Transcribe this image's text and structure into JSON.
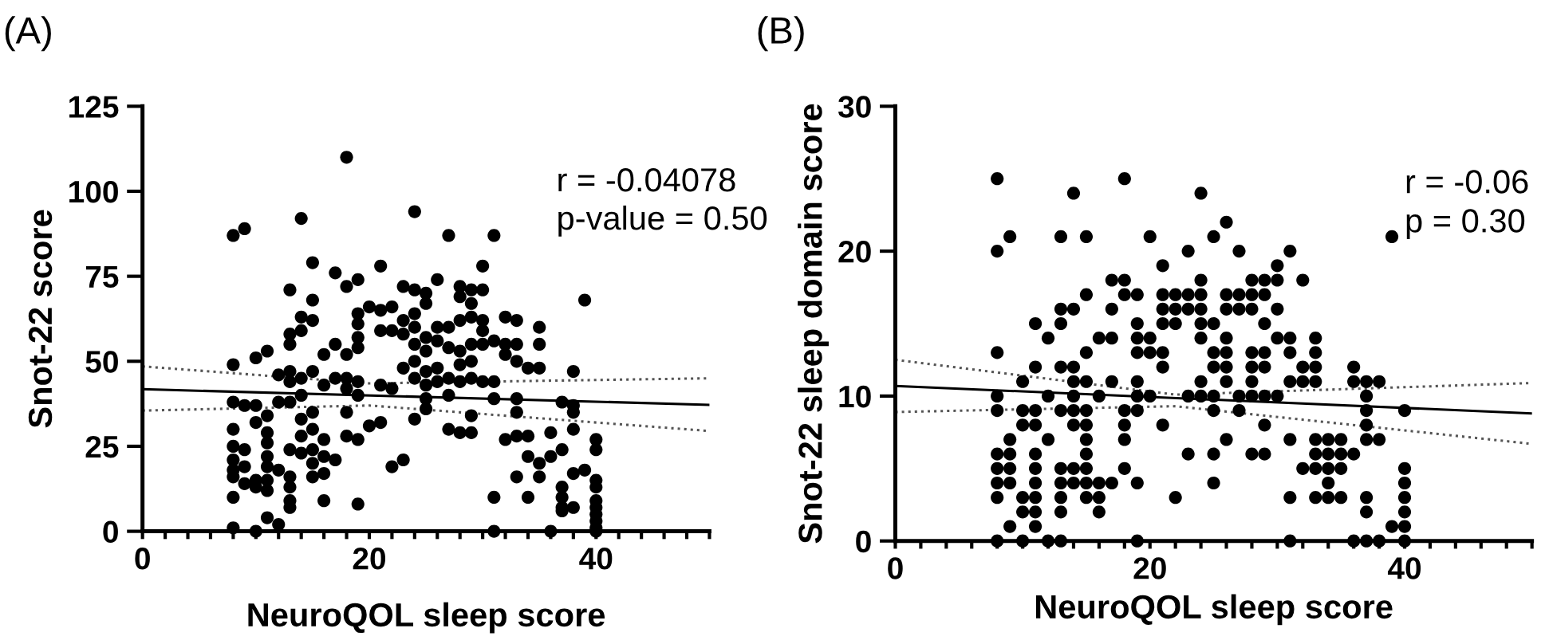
{
  "chart_data": [
    {
      "type": "scatter",
      "title": "(A)",
      "xlabel": "NeuroQOL sleep score",
      "ylabel": "Snot-22 score",
      "annotations": [
        "r = -0.04078",
        "p-value = 0.50"
      ],
      "xlim": [
        0,
        50
      ],
      "ylim": [
        0,
        125
      ],
      "xticks": [
        0,
        {
          "value": 2,
          "label": null
        },
        {
          "value": 4,
          "label": null
        },
        {
          "value": 6,
          "label": null
        },
        {
          "value": 8,
          "label": null
        },
        {
          "value": 10,
          "label": null
        },
        {
          "value": 12,
          "label": null
        },
        {
          "value": 14,
          "label": null
        },
        {
          "value": 16,
          "label": null
        },
        {
          "value": 18,
          "label": null
        },
        20,
        {
          "value": 22,
          "label": null
        },
        {
          "value": 24,
          "label": null
        },
        {
          "value": 26,
          "label": null
        },
        {
          "value": 28,
          "label": null
        },
        {
          "value": 30,
          "label": null
        },
        {
          "value": 32,
          "label": null
        },
        {
          "value": 34,
          "label": null
        },
        {
          "value": 36,
          "label": null
        },
        {
          "value": 38,
          "label": null
        },
        40,
        {
          "value": 42,
          "label": null
        },
        {
          "value": 44,
          "label": null
        },
        {
          "value": 46,
          "label": null
        },
        {
          "value": 48,
          "label": null
        },
        {
          "value": 50,
          "label": null
        }
      ],
      "yticks": [
        0,
        25,
        50,
        75,
        100,
        125
      ],
      "grid": false,
      "series": [
        {
          "marker": "circle",
          "color": "#000000",
          "x": [
            8,
            8,
            8,
            8,
            8,
            8,
            8,
            8,
            8,
            8,
            9,
            9,
            9,
            9,
            9,
            10,
            10,
            10,
            10,
            10,
            10,
            11,
            11,
            11,
            11,
            11,
            11,
            11,
            11,
            11,
            12,
            12,
            12,
            12,
            13,
            13,
            13,
            13,
            13,
            13,
            13,
            13,
            13,
            13,
            13,
            14,
            14,
            14,
            14,
            14,
            14,
            14,
            14,
            15,
            15,
            15,
            15,
            15,
            15,
            15,
            15,
            15,
            16,
            16,
            16,
            16,
            16,
            16,
            17,
            17,
            17,
            17,
            18,
            18,
            18,
            18,
            18,
            18,
            18,
            19,
            19,
            19,
            19,
            19,
            19,
            19,
            19,
            19,
            20,
            20,
            21,
            21,
            21,
            21,
            21,
            22,
            22,
            22,
            22,
            23,
            23,
            23,
            23,
            23,
            24,
            24,
            24,
            24,
            24,
            24,
            24,
            24,
            25,
            25,
            25,
            25,
            25,
            25,
            25,
            25,
            26,
            26,
            26,
            26,
            26,
            27,
            27,
            27,
            27,
            27,
            27,
            28,
            28,
            28,
            28,
            28,
            28,
            28,
            29,
            29,
            29,
            29,
            29,
            29,
            29,
            29,
            30,
            30,
            30,
            30,
            30,
            30,
            31,
            31,
            31,
            31,
            31,
            31,
            32,
            32,
            32,
            32,
            33,
            33,
            33,
            33,
            33,
            33,
            33,
            34,
            34,
            34,
            34,
            35,
            35,
            35,
            35,
            35,
            36,
            36,
            36,
            37,
            37,
            37,
            37,
            37,
            37,
            38,
            38,
            38,
            38,
            38,
            38,
            39,
            39,
            40,
            40,
            40,
            40,
            40,
            40,
            40,
            40,
            40,
            40
          ],
          "values": [
            87,
            49,
            38,
            30,
            25,
            21,
            18,
            16,
            10,
            1,
            89,
            37,
            24,
            19,
            14,
            51,
            37,
            32,
            15,
            13,
            0,
            53,
            34,
            29,
            26,
            22,
            19,
            15,
            12,
            4,
            46,
            38,
            18,
            2,
            71,
            58,
            55,
            47,
            44,
            38,
            24,
            16,
            13,
            9,
            7,
            92,
            63,
            59,
            45,
            40,
            33,
            28,
            23,
            79,
            68,
            62,
            47,
            35,
            30,
            24,
            20,
            16,
            52,
            43,
            27,
            22,
            17,
            9,
            76,
            55,
            45,
            21,
            110,
            72,
            52,
            45,
            42,
            35,
            28,
            74,
            64,
            61,
            57,
            54,
            44,
            40,
            27,
            8,
            66,
            31,
            78,
            65,
            59,
            43,
            32,
            66,
            59,
            42,
            19,
            72,
            62,
            58,
            48,
            21,
            94,
            71,
            64,
            60,
            55,
            50,
            45,
            33,
            70,
            67,
            57,
            53,
            47,
            43,
            39,
            36,
            74,
            60,
            56,
            48,
            44,
            87,
            60,
            54,
            45,
            40,
            30,
            72,
            69,
            62,
            53,
            49,
            44,
            29,
            71,
            67,
            63,
            55,
            50,
            45,
            34,
            29,
            78,
            71,
            62,
            59,
            55,
            44,
            87,
            56,
            44,
            39,
            10,
            0,
            63,
            55,
            52,
            27,
            62,
            55,
            50,
            39,
            35,
            28,
            16,
            48,
            28,
            22,
            10,
            60,
            55,
            48,
            20,
            16,
            29,
            22,
            0,
            38,
            24,
            13,
            10,
            7,
            6,
            47,
            37,
            35,
            30,
            17,
            7,
            68,
            18,
            27,
            24,
            15,
            13,
            9,
            7,
            5,
            3,
            1,
            0
          ]
        },
        {
          "type": "line",
          "line_style": "solid",
          "color": "#000000",
          "x": [
            0,
            50
          ],
          "values": [
            41.8,
            37.2
          ]
        },
        {
          "type": "line",
          "line_style": "dotted",
          "color": "#555555",
          "x": [
            0,
            20,
            50
          ],
          "values": [
            48.5,
            43.5,
            45
          ]
        },
        {
          "type": "line",
          "line_style": "dotted",
          "color": "#555555",
          "x": [
            0,
            20,
            50
          ],
          "values": [
            35.5,
            37,
            29.5
          ]
        }
      ]
    },
    {
      "type": "scatter",
      "title": "(B)",
      "xlabel": "NeuroQOL sleep score",
      "ylabel": "Snot-22 sleep domain score",
      "annotations": [
        "r = -0.06",
        "p = 0.30"
      ],
      "xlim": [
        0,
        50
      ],
      "ylim": [
        0,
        30
      ],
      "xticks": [
        0,
        {
          "value": 2,
          "label": null
        },
        {
          "value": 4,
          "label": null
        },
        {
          "value": 6,
          "label": null
        },
        {
          "value": 8,
          "label": null
        },
        {
          "value": 10,
          "label": null
        },
        {
          "value": 12,
          "label": null
        },
        {
          "value": 14,
          "label": null
        },
        {
          "value": 16,
          "label": null
        },
        {
          "value": 18,
          "label": null
        },
        20,
        {
          "value": 22,
          "label": null
        },
        {
          "value": 24,
          "label": null
        },
        {
          "value": 26,
          "label": null
        },
        {
          "value": 28,
          "label": null
        },
        {
          "value": 30,
          "label": null
        },
        {
          "value": 32,
          "label": null
        },
        {
          "value": 34,
          "label": null
        },
        {
          "value": 36,
          "label": null
        },
        {
          "value": 38,
          "label": null
        },
        40,
        {
          "value": 42,
          "label": null
        },
        {
          "value": 44,
          "label": null
        },
        {
          "value": 46,
          "label": null
        },
        {
          "value": 48,
          "label": null
        },
        {
          "value": 50,
          "label": null
        }
      ],
      "yticks": [
        0,
        10,
        20,
        30
      ],
      "grid": false,
      "series": [
        {
          "marker": "circle",
          "color": "#000000",
          "x": [
            8,
            8,
            8,
            8,
            8,
            8,
            8,
            8,
            8,
            8,
            9,
            9,
            9,
            9,
            9,
            9,
            10,
            10,
            10,
            10,
            10,
            10,
            11,
            11,
            11,
            11,
            11,
            11,
            11,
            11,
            11,
            11,
            12,
            12,
            12,
            12,
            13,
            13,
            13,
            13,
            13,
            13,
            13,
            13,
            13,
            13,
            14,
            14,
            14,
            14,
            14,
            14,
            14,
            14,
            14,
            15,
            15,
            15,
            15,
            15,
            15,
            15,
            15,
            15,
            15,
            15,
            16,
            16,
            16,
            16,
            16,
            17,
            17,
            17,
            17,
            17,
            18,
            18,
            18,
            18,
            18,
            18,
            18,
            19,
            19,
            19,
            19,
            19,
            19,
            19,
            19,
            19,
            20,
            20,
            20,
            20,
            21,
            21,
            21,
            21,
            21,
            21,
            21,
            22,
            22,
            22,
            22,
            23,
            23,
            23,
            23,
            23,
            24,
            24,
            24,
            24,
            24,
            24,
            24,
            24,
            25,
            25,
            25,
            25,
            25,
            25,
            25,
            25,
            26,
            26,
            26,
            26,
            26,
            26,
            26,
            26,
            27,
            27,
            27,
            27,
            27,
            28,
            28,
            28,
            28,
            28,
            28,
            28,
            28,
            29,
            29,
            29,
            29,
            29,
            29,
            29,
            29,
            30,
            30,
            30,
            30,
            30,
            31,
            31,
            31,
            31,
            31,
            31,
            31,
            32,
            32,
            32,
            32,
            33,
            33,
            33,
            33,
            33,
            33,
            33,
            33,
            34,
            34,
            34,
            34,
            34,
            35,
            35,
            35,
            35,
            36,
            36,
            36,
            36,
            37,
            37,
            37,
            37,
            37,
            37,
            37,
            37,
            38,
            38,
            38,
            39,
            39,
            40,
            40,
            40,
            40,
            40,
            40,
            40
          ],
          "values": [
            25,
            20,
            13,
            10,
            9,
            6,
            5,
            4,
            3,
            0,
            21,
            7,
            6,
            5,
            4,
            1,
            11,
            9,
            8,
            3,
            2,
            0,
            15,
            12,
            9,
            8,
            6,
            5,
            4,
            3,
            2,
            1,
            14,
            10,
            7,
            0,
            21,
            16,
            15,
            12,
            9,
            5,
            4,
            3,
            2,
            0,
            24,
            16,
            12,
            11,
            10,
            9,
            8,
            5,
            4,
            21,
            17,
            13,
            11,
            9,
            8,
            7,
            6,
            5,
            4,
            3,
            14,
            10,
            4,
            3,
            2,
            18,
            16,
            14,
            11,
            4,
            25,
            18,
            17,
            9,
            8,
            7,
            5,
            17,
            15,
            14,
            13,
            11,
            10,
            9,
            4,
            0,
            21,
            14,
            13,
            10,
            19,
            17,
            16,
            15,
            13,
            12,
            8,
            17,
            16,
            15,
            3,
            20,
            17,
            16,
            10,
            6,
            24,
            18,
            17,
            16,
            15,
            14,
            11,
            10,
            21,
            15,
            13,
            12,
            10,
            9,
            6,
            4,
            22,
            17,
            16,
            14,
            13,
            12,
            11,
            7,
            20,
            17,
            16,
            10,
            9,
            18,
            17,
            16,
            13,
            12,
            11,
            10,
            6,
            18,
            17,
            15,
            13,
            12,
            10,
            8,
            6,
            19,
            18,
            16,
            14,
            10,
            20,
            14,
            13,
            11,
            7,
            3,
            0,
            18,
            12,
            11,
            5,
            14,
            13,
            12,
            11,
            7,
            6,
            5,
            3,
            7,
            6,
            5,
            4,
            3,
            7,
            6,
            5,
            3,
            12,
            11,
            6,
            0,
            11,
            10,
            9,
            8,
            7,
            3,
            2,
            0,
            11,
            7,
            0,
            21,
            1,
            9,
            5,
            4,
            3,
            2,
            1,
            0
          ]
        },
        {
          "type": "line",
          "line_style": "solid",
          "color": "#000000",
          "x": [
            0,
            50
          ],
          "values": [
            10.7,
            8.8
          ]
        },
        {
          "type": "line",
          "line_style": "dotted",
          "color": "#555555",
          "x": [
            0,
            22,
            50
          ],
          "values": [
            12.5,
            10.1,
            10.9
          ]
        },
        {
          "type": "line",
          "line_style": "dotted",
          "color": "#555555",
          "x": [
            0,
            22,
            50
          ],
          "values": [
            8.9,
            9.3,
            6.7
          ]
        }
      ]
    }
  ]
}
